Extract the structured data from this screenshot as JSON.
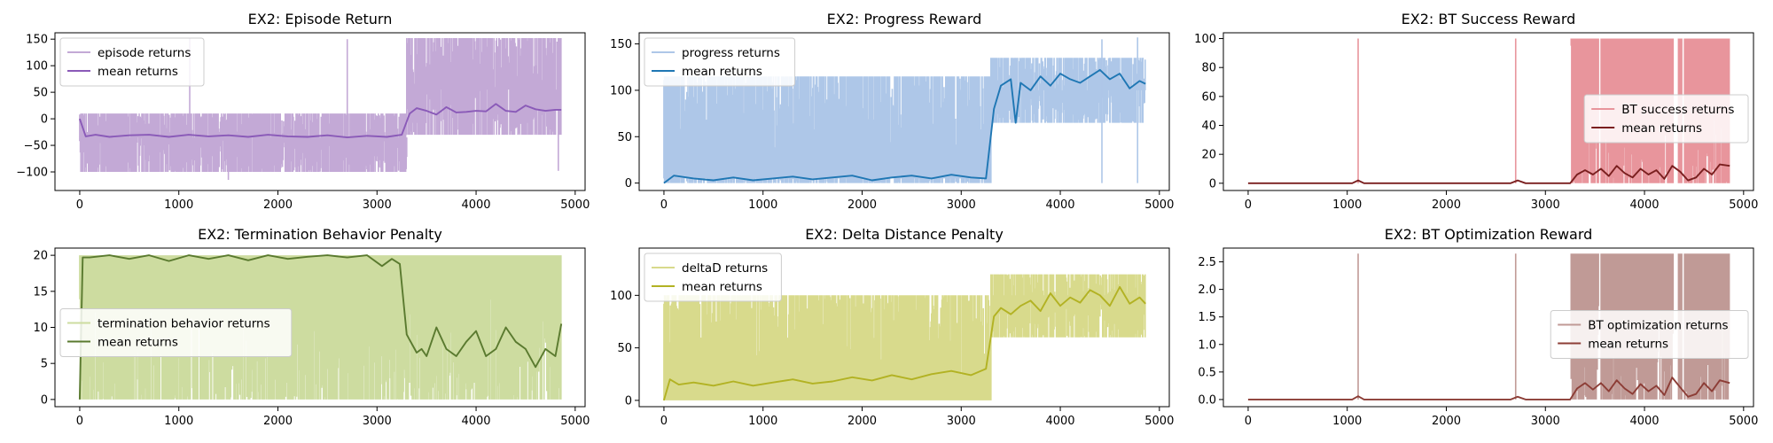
{
  "chart_data": [
    {
      "type": "line",
      "title": "EX2: Episode Return",
      "xlim": [
        -250,
        5100
      ],
      "ylim": [
        -135,
        162
      ],
      "xticks": [
        0,
        1000,
        2000,
        3000,
        4000,
        5000
      ],
      "yticks": [
        -100,
        -50,
        0,
        50,
        100,
        150
      ],
      "legend": "upper-left",
      "raw": {
        "name": "episode returns",
        "color": "#c3a9d6",
        "segments": [
          {
            "x": [
              0,
              3300
            ],
            "lo": -100,
            "hi": 10,
            "base": -35
          },
          {
            "x": [
              3300,
              4860
            ],
            "lo": -30,
            "hi": 152,
            "base": 55
          }
        ],
        "spikes": [
          {
            "x": 1110,
            "y": 152
          },
          {
            "x": 2700,
            "y": 150
          },
          {
            "x": 1500,
            "y": -115
          },
          {
            "x": 4830,
            "y": -98
          }
        ]
      },
      "series": [
        {
          "name": "mean returns",
          "color": "#8a5ab8",
          "x": [
            0,
            60,
            160,
            300,
            500,
            700,
            900,
            1100,
            1300,
            1500,
            1700,
            1900,
            2100,
            2300,
            2500,
            2700,
            2900,
            3100,
            3250,
            3330,
            3400,
            3500,
            3600,
            3700,
            3800,
            3900,
            4000,
            4100,
            4200,
            4300,
            4400,
            4500,
            4600,
            4700,
            4800,
            4860
          ],
          "y": [
            0,
            -33,
            -30,
            -34,
            -31,
            -30,
            -34,
            -30,
            -33,
            -31,
            -34,
            -30,
            -33,
            -34,
            -31,
            -35,
            -32,
            -34,
            -30,
            10,
            20,
            15,
            8,
            22,
            12,
            13,
            15,
            14,
            28,
            15,
            13,
            25,
            18,
            15,
            17,
            17
          ]
        }
      ]
    },
    {
      "type": "line",
      "title": "EX2: Progress Reward",
      "xlim": [
        -250,
        5100
      ],
      "ylim": [
        -8,
        162
      ],
      "xticks": [
        0,
        1000,
        2000,
        3000,
        4000,
        5000
      ],
      "yticks": [
        0,
        50,
        100,
        150
      ],
      "legend": "upper-left",
      "raw": {
        "name": "progress returns",
        "color": "#aec7e8",
        "segments": [
          {
            "x": [
              0,
              3300
            ],
            "lo": 0,
            "hi": 115,
            "base": 5
          },
          {
            "x": [
              3300,
              4860
            ],
            "lo": 65,
            "hi": 135,
            "base": 100
          }
        ],
        "spikes": [
          {
            "x": 4420,
            "y": 155
          },
          {
            "x": 4780,
            "y": 157
          }
        ]
      },
      "series": [
        {
          "name": "mean returns",
          "color": "#1f77b4",
          "x": [
            0,
            100,
            300,
            500,
            700,
            900,
            1100,
            1300,
            1500,
            1700,
            1900,
            2100,
            2300,
            2500,
            2700,
            2900,
            3100,
            3250,
            3330,
            3400,
            3500,
            3550,
            3600,
            3700,
            3800,
            3900,
            4000,
            4100,
            4200,
            4300,
            4400,
            4500,
            4600,
            4700,
            4800,
            4860
          ],
          "y": [
            0,
            8,
            5,
            3,
            6,
            3,
            5,
            7,
            4,
            6,
            8,
            3,
            6,
            8,
            5,
            9,
            6,
            5,
            80,
            105,
            112,
            65,
            108,
            100,
            115,
            105,
            118,
            112,
            108,
            115,
            122,
            112,
            118,
            102,
            110,
            107
          ]
        }
      ]
    },
    {
      "type": "line",
      "title": "EX2: BT Success Reward",
      "xlim": [
        -250,
        5100
      ],
      "ylim": [
        -5,
        104
      ],
      "xticks": [
        0,
        1000,
        2000,
        3000,
        4000,
        5000
      ],
      "yticks": [
        0,
        20,
        40,
        60,
        80,
        100
      ],
      "legend": "center-right",
      "raw": {
        "name": "BT success returns",
        "color": "#e8959c",
        "segments": [
          {
            "x": [
              3260,
              4860
            ],
            "lo": 0,
            "hi": 100,
            "base": 100
          }
        ],
        "gaps": [
          [
            3540,
            3560
          ],
          [
            4290,
            4340
          ],
          [
            4380,
            4400
          ]
        ],
        "spikes": [
          {
            "x": 1110,
            "y": 100
          },
          {
            "x": 2700,
            "y": 100
          }
        ]
      },
      "series": [
        {
          "name": "mean returns",
          "color": "#7a1f1f",
          "x": [
            0,
            1050,
            1110,
            1170,
            2650,
            2720,
            2800,
            3250,
            3320,
            3400,
            3480,
            3560,
            3640,
            3720,
            3800,
            3880,
            3960,
            4040,
            4120,
            4200,
            4280,
            4360,
            4440,
            4520,
            4600,
            4680,
            4760,
            4860
          ],
          "y": [
            0,
            0,
            2,
            0,
            0,
            2,
            0,
            0,
            6,
            9,
            6,
            10,
            5,
            12,
            7,
            4,
            10,
            6,
            9,
            3,
            12,
            8,
            2,
            4,
            10,
            6,
            13,
            12
          ]
        }
      ]
    },
    {
      "type": "line",
      "title": "EX2: Termination Behavior Penalty",
      "xlim": [
        -250,
        5100
      ],
      "ylim": [
        -1,
        21
      ],
      "xticks": [
        0,
        1000,
        2000,
        3000,
        4000,
        5000
      ],
      "yticks": [
        0,
        5,
        10,
        15,
        20
      ],
      "legend": "center-left",
      "raw": {
        "name": "termination behavior returns",
        "color": "#cddca0",
        "segments": [
          {
            "x": [
              0,
              3300
            ],
            "lo": 0,
            "hi": 20,
            "base": 20
          },
          {
            "x": [
              3300,
              4860
            ],
            "lo": 0,
            "hi": 20,
            "base": 20
          }
        ]
      },
      "series": [
        {
          "name": "mean returns",
          "color": "#5a7a2f",
          "x": [
            0,
            30,
            100,
            300,
            500,
            700,
            900,
            1100,
            1300,
            1500,
            1700,
            1900,
            2100,
            2300,
            2500,
            2700,
            2900,
            3050,
            3150,
            3230,
            3300,
            3400,
            3450,
            3500,
            3600,
            3700,
            3800,
            3900,
            4000,
            4100,
            4200,
            4300,
            4400,
            4500,
            4600,
            4700,
            4800,
            4860
          ],
          "y": [
            0,
            19.7,
            19.7,
            20,
            19.5,
            20,
            19.2,
            20,
            19.5,
            20,
            19.3,
            20,
            19.5,
            19.8,
            20,
            19.7,
            20,
            18.5,
            19.5,
            18.8,
            9,
            6.5,
            7,
            6,
            10,
            7,
            6,
            8,
            9.5,
            6,
            7,
            10,
            8,
            7,
            4.5,
            7,
            6,
            10.5
          ]
        }
      ]
    },
    {
      "type": "line",
      "title": "EX2: Delta Distance Penalty",
      "xlim": [
        -250,
        5100
      ],
      "ylim": [
        -6,
        145
      ],
      "xticks": [
        0,
        1000,
        2000,
        3000,
        4000,
        5000
      ],
      "yticks": [
        0,
        50,
        100
      ],
      "legend": "upper-left",
      "raw": {
        "name": "deltaD returns",
        "color": "#d8da8c",
        "segments": [
          {
            "x": [
              0,
              3300
            ],
            "lo": 0,
            "hi": 100,
            "base": 0
          },
          {
            "x": [
              3300,
              4860
            ],
            "lo": 60,
            "hi": 120,
            "base": 100
          }
        ]
      },
      "series": [
        {
          "name": "mean returns",
          "color": "#b2b223",
          "x": [
            0,
            60,
            150,
            300,
            500,
            700,
            900,
            1100,
            1300,
            1500,
            1700,
            1900,
            2100,
            2300,
            2500,
            2700,
            2900,
            3100,
            3250,
            3330,
            3400,
            3500,
            3600,
            3700,
            3800,
            3900,
            4000,
            4100,
            4200,
            4300,
            4400,
            4500,
            4600,
            4700,
            4800,
            4860
          ],
          "y": [
            0,
            20,
            15,
            17,
            14,
            18,
            14,
            17,
            20,
            16,
            18,
            22,
            19,
            24,
            20,
            25,
            28,
            24,
            30,
            80,
            88,
            82,
            90,
            95,
            85,
            102,
            90,
            98,
            93,
            105,
            100,
            90,
            108,
            92,
            98,
            92
          ]
        }
      ]
    },
    {
      "type": "line",
      "title": "EX2: BT Optimization Reward",
      "xlim": [
        -250,
        5100
      ],
      "ylim": [
        -0.13,
        2.75
      ],
      "xticks": [
        0,
        1000,
        2000,
        3000,
        4000,
        5000
      ],
      "yticks": [
        0,
        0.5,
        1,
        1.5,
        2,
        2.5
      ],
      "ytick_labels": [
        "0.0",
        "0.5",
        "1.0",
        "1.5",
        "2.0",
        "2.5"
      ],
      "legend": "center-right",
      "raw": {
        "name": "BT optimization returns",
        "color": "#c09a96",
        "segments": [
          {
            "x": [
              3260,
              4860
            ],
            "lo": 0,
            "hi": 2.65,
            "base": 2.65
          }
        ],
        "gaps": [
          [
            3540,
            3560
          ],
          [
            4290,
            4340
          ],
          [
            4380,
            4400
          ]
        ],
        "spikes": [
          {
            "x": 1110,
            "y": 2.65
          },
          {
            "x": 2700,
            "y": 2.65
          }
        ]
      },
      "series": [
        {
          "name": "mean returns",
          "color": "#8c3d36",
          "x": [
            0,
            1050,
            1110,
            1170,
            2650,
            2720,
            2800,
            3250,
            3320,
            3400,
            3480,
            3560,
            3640,
            3720,
            3800,
            3880,
            3960,
            4040,
            4120,
            4200,
            4280,
            4360,
            4440,
            4520,
            4600,
            4680,
            4760,
            4860
          ],
          "y": [
            0,
            0,
            0.06,
            0,
            0,
            0.05,
            0,
            0,
            0.2,
            0.3,
            0.18,
            0.3,
            0.15,
            0.35,
            0.2,
            0.1,
            0.28,
            0.15,
            0.25,
            0.08,
            0.4,
            0.22,
            0.05,
            0.1,
            0.3,
            0.15,
            0.35,
            0.3
          ]
        }
      ]
    }
  ]
}
